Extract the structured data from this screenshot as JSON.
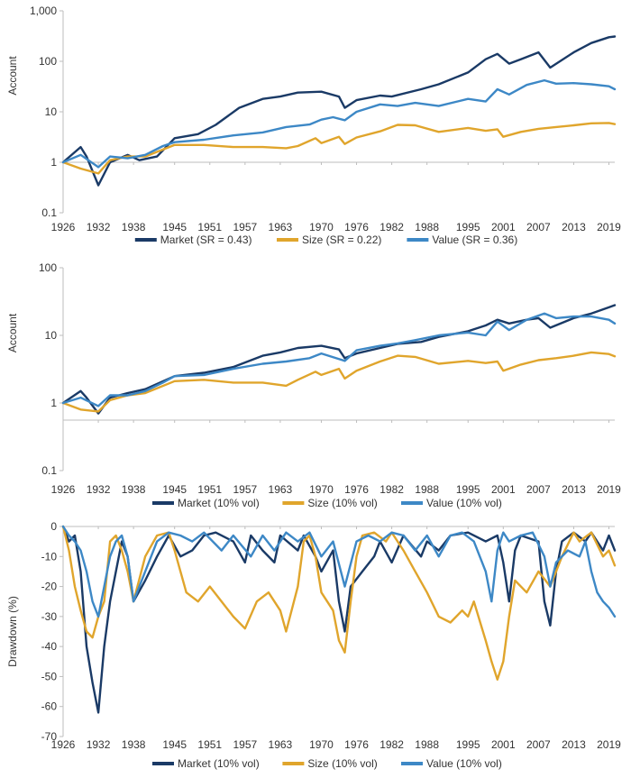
{
  "colors": {
    "market": "#1a3a66",
    "size": "#e0a52c",
    "value": "#3d88c6",
    "axis": "#bdbdbd",
    "text": "#333333"
  },
  "x_tick_labels": [
    "1926",
    "1932",
    "1938",
    "1945",
    "1951",
    "1957",
    "1963",
    "1970",
    "1976",
    "1982",
    "1988",
    "1995",
    "2001",
    "2007",
    "2013",
    "2019"
  ],
  "chart_data": [
    {
      "type": "line",
      "ylabel": "Account",
      "yscale": "log",
      "ylim": [
        0.1,
        1000
      ],
      "yticks": [
        "0.1",
        "1",
        "10",
        "100",
        "1,000"
      ],
      "legend_position": "bottom",
      "series": [
        {
          "name": "Market (SR = 0.43)",
          "key": "market",
          "x": [
            1926,
            1929,
            1930,
            1932,
            1934,
            1937,
            1939,
            1942,
            1945,
            1949,
            1952,
            1956,
            1960,
            1963,
            1966,
            1970,
            1973,
            1974,
            1976,
            1980,
            1982,
            1987,
            1990,
            1995,
            1998,
            2000,
            2002,
            2004,
            2007,
            2009,
            2013,
            2016,
            2019,
            2020
          ],
          "y": [
            1,
            2.0,
            1.3,
            0.35,
            1.0,
            1.4,
            1.1,
            1.3,
            3.0,
            3.6,
            5.5,
            12,
            18,
            20,
            24,
            25,
            20,
            12,
            17,
            21,
            20,
            28,
            35,
            60,
            110,
            140,
            90,
            110,
            150,
            75,
            150,
            230,
            300,
            310
          ]
        },
        {
          "name": "Size (SR = 0.22)",
          "key": "size",
          "x": [
            1926,
            1929,
            1932,
            1934,
            1937,
            1940,
            1945,
            1950,
            1955,
            1960,
            1964,
            1966,
            1969,
            1970,
            1973,
            1974,
            1976,
            1980,
            1983,
            1986,
            1990,
            1995,
            1998,
            2000,
            2001,
            2004,
            2007,
            2010,
            2013,
            2016,
            2019,
            2020
          ],
          "y": [
            1,
            0.75,
            0.6,
            1.1,
            1.3,
            1.3,
            2.2,
            2.2,
            2.0,
            2.0,
            1.9,
            2.1,
            3.0,
            2.4,
            3.2,
            2.3,
            3.1,
            4.1,
            5.5,
            5.4,
            4.0,
            4.8,
            4.2,
            4.5,
            3.2,
            4.0,
            4.6,
            5.0,
            5.4,
            5.9,
            6.0,
            5.7
          ]
        },
        {
          "name": "Value (SR = 0.36)",
          "key": "value",
          "x": [
            1926,
            1929,
            1932,
            1934,
            1937,
            1940,
            1943,
            1945,
            1950,
            1955,
            1960,
            1964,
            1968,
            1970,
            1972,
            1974,
            1976,
            1980,
            1983,
            1986,
            1990,
            1995,
            1998,
            2000,
            2002,
            2005,
            2008,
            2010,
            2013,
            2016,
            2019,
            2020
          ],
          "y": [
            1,
            1.4,
            0.8,
            1.3,
            1.2,
            1.4,
            2.1,
            2.5,
            2.8,
            3.4,
            3.9,
            5.0,
            5.6,
            7.0,
            7.8,
            6.8,
            10,
            14,
            13,
            15,
            13,
            18,
            16,
            28,
            22,
            34,
            42,
            36,
            37,
            35,
            32,
            28
          ]
        }
      ]
    },
    {
      "type": "line",
      "ylabel": "Account",
      "yscale": "log",
      "ylim": [
        0.1,
        100
      ],
      "yticks": [
        "0.1",
        "1",
        "10",
        "100"
      ],
      "legend_position": "bottom",
      "series": [
        {
          "name": "Market (10% vol)",
          "key": "market",
          "x": [
            1926,
            1929,
            1930,
            1932,
            1934,
            1937,
            1940,
            1945,
            1950,
            1955,
            1960,
            1963,
            1966,
            1970,
            1973,
            1974,
            1976,
            1980,
            1983,
            1987,
            1990,
            1995,
            1998,
            2000,
            2002,
            2005,
            2007,
            2009,
            2013,
            2016,
            2019,
            2020
          ],
          "y": [
            1,
            1.5,
            1.2,
            0.7,
            1.2,
            1.4,
            1.6,
            2.5,
            2.8,
            3.4,
            5.0,
            5.6,
            6.5,
            7.0,
            6.2,
            4.6,
            5.4,
            6.5,
            7.5,
            8.0,
            9.5,
            11.5,
            14,
            17,
            15,
            17,
            18,
            13,
            18,
            21,
            26,
            28
          ]
        },
        {
          "name": "Size (10% vol)",
          "key": "size",
          "x": [
            1926,
            1929,
            1932,
            1934,
            1937,
            1940,
            1945,
            1950,
            1955,
            1960,
            1964,
            1966,
            1969,
            1970,
            1973,
            1974,
            1976,
            1980,
            1983,
            1986,
            1990,
            1995,
            1998,
            2000,
            2001,
            2004,
            2007,
            2010,
            2013,
            2016,
            2019,
            2020
          ],
          "y": [
            1,
            0.8,
            0.75,
            1.1,
            1.3,
            1.4,
            2.1,
            2.2,
            2.0,
            2.0,
            1.8,
            2.2,
            2.9,
            2.6,
            3.2,
            2.3,
            3.0,
            4.1,
            5.0,
            4.8,
            3.8,
            4.2,
            3.9,
            4.1,
            3.0,
            3.7,
            4.3,
            4.6,
            5.0,
            5.6,
            5.3,
            4.9
          ]
        },
        {
          "name": "Value (10% vol)",
          "key": "value",
          "x": [
            1926,
            1929,
            1932,
            1934,
            1937,
            1940,
            1943,
            1945,
            1950,
            1955,
            1960,
            1964,
            1968,
            1970,
            1974,
            1976,
            1980,
            1983,
            1986,
            1990,
            1995,
            1998,
            2000,
            2002,
            2005,
            2008,
            2010,
            2013,
            2016,
            2019,
            2020
          ],
          "y": [
            1,
            1.2,
            0.9,
            1.3,
            1.3,
            1.5,
            2.0,
            2.5,
            2.6,
            3.2,
            3.8,
            4.1,
            4.6,
            5.4,
            4.2,
            6.0,
            7.0,
            7.6,
            8.5,
            10,
            11,
            10,
            16,
            12,
            17,
            21,
            18,
            19,
            19,
            17,
            15
          ]
        }
      ]
    },
    {
      "type": "line",
      "ylabel": "Drawdown (%)",
      "yscale": "linear",
      "ylim": [
        -70,
        0
      ],
      "yticks": [
        "0",
        "-10",
        "-20",
        "-30",
        "-40",
        "-50",
        "-60",
        "-70"
      ],
      "legend_position": "bottom",
      "series": [
        {
          "name": "Market (10% vol)",
          "key": "market",
          "x": [
            1926,
            1927,
            1928,
            1929,
            1930,
            1931,
            1932,
            1933,
            1934,
            1935,
            1936,
            1937,
            1938,
            1940,
            1942,
            1944,
            1946,
            1948,
            1950,
            1952,
            1955,
            1957,
            1958,
            1960,
            1962,
            1963,
            1966,
            1967,
            1969,
            1970,
            1972,
            1973,
            1974,
            1975,
            1977,
            1979,
            1980,
            1982,
            1984,
            1987,
            1988,
            1990,
            1992,
            1995,
            1998,
            2000,
            2001,
            2002,
            2003,
            2004,
            2007,
            2008,
            2009,
            2010,
            2011,
            2013,
            2015,
            2016,
            2018,
            2019,
            2020
          ],
          "y": [
            0,
            -5,
            -3,
            -15,
            -40,
            -52,
            -62,
            -40,
            -25,
            -15,
            -5,
            -10,
            -25,
            -18,
            -10,
            -3,
            -10,
            -8,
            -3,
            -2,
            -5,
            -12,
            -3,
            -8,
            -12,
            -3,
            -8,
            -3,
            -10,
            -15,
            -8,
            -25,
            -35,
            -20,
            -15,
            -10,
            -5,
            -12,
            -3,
            -10,
            -5,
            -8,
            -3,
            -2,
            -5,
            -3,
            -12,
            -25,
            -8,
            -3,
            -5,
            -25,
            -33,
            -15,
            -5,
            -2,
            -5,
            -2,
            -8,
            -3,
            -8
          ]
        },
        {
          "name": "Size (10% vol)",
          "key": "size",
          "x": [
            1926,
            1927,
            1928,
            1929,
            1930,
            1931,
            1932,
            1933,
            1934,
            1935,
            1936,
            1937,
            1938,
            1940,
            1942,
            1944,
            1945,
            1946,
            1947,
            1949,
            1951,
            1953,
            1955,
            1957,
            1959,
            1961,
            1963,
            1964,
            1966,
            1967,
            1968,
            1969,
            1970,
            1972,
            1973,
            1974,
            1975,
            1976,
            1977,
            1979,
            1981,
            1982,
            1984,
            1986,
            1988,
            1990,
            1992,
            1994,
            1995,
            1996,
            1998,
            1999,
            2000,
            2001,
            2002,
            2003,
            2005,
            2007,
            2009,
            2011,
            2013,
            2014,
            2016,
            2018,
            2019,
            2020
          ],
          "y": [
            0,
            -8,
            -20,
            -28,
            -35,
            -37,
            -30,
            -25,
            -5,
            -3,
            -8,
            -15,
            -25,
            -10,
            -3,
            -2,
            -8,
            -15,
            -22,
            -25,
            -20,
            -25,
            -30,
            -34,
            -25,
            -22,
            -28,
            -35,
            -20,
            -5,
            -3,
            -10,
            -22,
            -28,
            -38,
            -42,
            -25,
            -10,
            -3,
            -2,
            -5,
            -2,
            -8,
            -15,
            -22,
            -30,
            -32,
            -28,
            -30,
            -25,
            -38,
            -45,
            -51,
            -45,
            -30,
            -18,
            -22,
            -15,
            -20,
            -10,
            -2,
            -5,
            -2,
            -10,
            -8,
            -13
          ]
        },
        {
          "name": "Value (10% vol)",
          "key": "value",
          "x": [
            1926,
            1927,
            1928,
            1929,
            1930,
            1931,
            1932,
            1933,
            1934,
            1935,
            1936,
            1937,
            1938,
            1940,
            1942,
            1944,
            1946,
            1948,
            1950,
            1953,
            1955,
            1958,
            1960,
            1962,
            1964,
            1966,
            1968,
            1970,
            1972,
            1974,
            1976,
            1978,
            1980,
            1982,
            1984,
            1986,
            1988,
            1990,
            1992,
            1994,
            1996,
            1998,
            1999,
            2000,
            2001,
            2002,
            2004,
            2006,
            2008,
            2009,
            2010,
            2012,
            2014,
            2015,
            2016,
            2017,
            2018,
            2019,
            2020
          ],
          "y": [
            0,
            -3,
            -5,
            -8,
            -15,
            -25,
            -30,
            -20,
            -10,
            -5,
            -3,
            -10,
            -25,
            -15,
            -5,
            -2,
            -3,
            -5,
            -2,
            -8,
            -3,
            -10,
            -3,
            -8,
            -2,
            -5,
            -2,
            -10,
            -5,
            -20,
            -5,
            -3,
            -5,
            -2,
            -3,
            -8,
            -3,
            -10,
            -3,
            -2,
            -5,
            -15,
            -25,
            -8,
            -2,
            -5,
            -3,
            -2,
            -10,
            -20,
            -12,
            -8,
            -10,
            -5,
            -15,
            -22,
            -25,
            -27,
            -30
          ]
        }
      ]
    }
  ]
}
